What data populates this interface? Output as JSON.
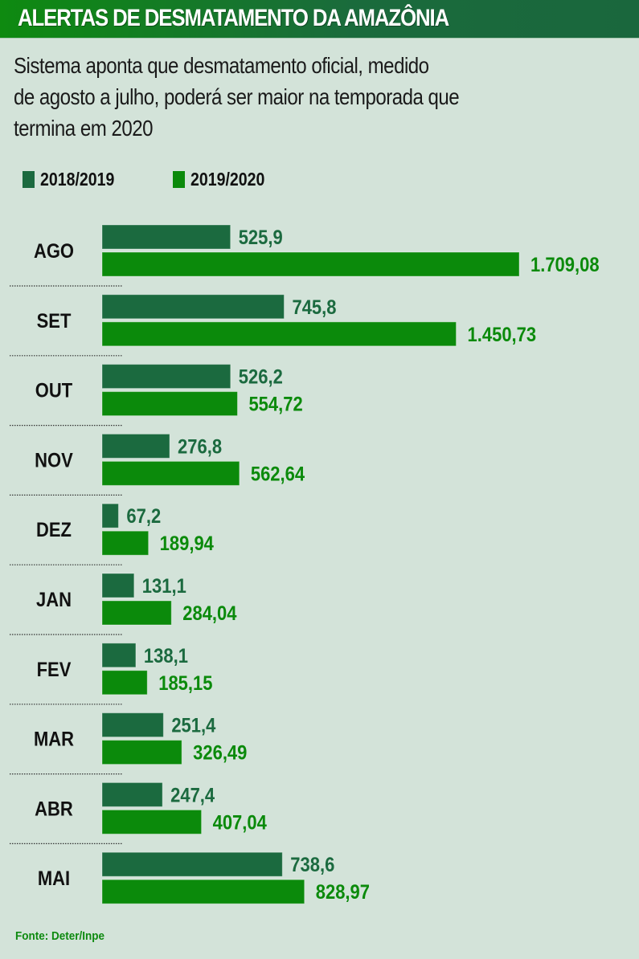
{
  "header": {
    "title": "ALERTAS DE DESMATAMENTO DA AMAZÔNIA"
  },
  "subtitle": {
    "lines": [
      "Sistema aponta que desmatamento oficial, medido",
      "de agosto a julho, poderá ser maior na temporada que",
      "termina em 2020"
    ]
  },
  "colors": {
    "series_2018_2019": "#1b6a3f",
    "series_2019_2020": "#0b8a0b",
    "label_2018_2019": "#1b6a3f",
    "label_2019_2020": "#0b8a0b"
  },
  "footer": {
    "source": "Fonte: Deter/Inpe"
  },
  "chart_data": {
    "type": "bar",
    "orientation": "horizontal",
    "title": "ALERTAS DE DESMATAMENTO DA AMAZÔNIA",
    "subtitle": "Sistema aponta que desmatamento oficial, medido de agosto a julho, poderá ser maior na temporada que termina em 2020",
    "xlabel": "",
    "ylabel": "",
    "grid": false,
    "legend": "top-left",
    "xlim": [
      0,
      1709.08
    ],
    "categories": [
      "AGO",
      "SET",
      "OUT",
      "NOV",
      "DEZ",
      "JAN",
      "FEV",
      "MAR",
      "ABR",
      "MAI"
    ],
    "series": [
      {
        "name": "2018/2019",
        "values": [
          525.9,
          745.8,
          526.2,
          276.8,
          67.2,
          131.1,
          138.1,
          251.4,
          247.4,
          738.6
        ],
        "labels": [
          "525,9",
          "745,8",
          "526,2",
          "276,8",
          "67,2",
          "131,1",
          "138,1",
          "251,4",
          "247,4",
          "738,6"
        ]
      },
      {
        "name": "2019/2020",
        "values": [
          1709.08,
          1450.73,
          554.72,
          562.64,
          189.94,
          284.04,
          185.15,
          326.49,
          407.04,
          828.97
        ],
        "labels": [
          "1.709,08",
          "1.450,73",
          "554,72",
          "562,64",
          "189,94",
          "284,04",
          "185,15",
          "326,49",
          "407,04",
          "828,97"
        ]
      }
    ],
    "source": "Fonte: Deter/Inpe"
  }
}
